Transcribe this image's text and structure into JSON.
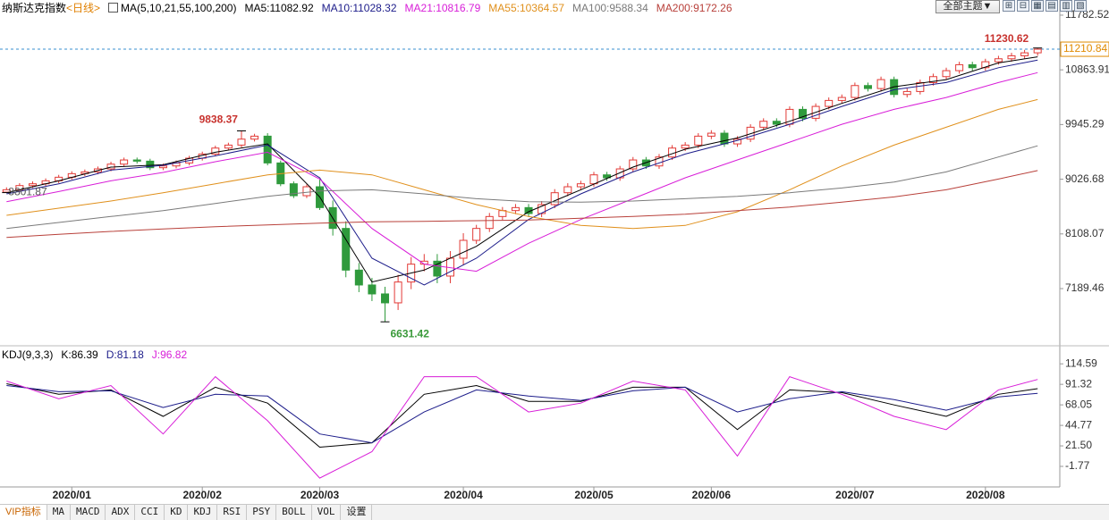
{
  "toolbar": {
    "theme_button": "全部主题▼"
  },
  "tabs": [
    "VIP指标",
    "MA",
    "MACD",
    "ADX",
    "CCI",
    "KD",
    "KDJ",
    "RSI",
    "PSY",
    "BOLL",
    "VOL",
    "设置"
  ],
  "chart_data": [
    {
      "type": "candlestick",
      "title": "纳斯达克指数",
      "subtitle": "<日线>",
      "indicator": "MA(5,10,21,55,100,200)",
      "up_color": "#e23a36",
      "down_color": "#2f9a3c",
      "open": [
        8810,
        8850,
        8920,
        8950,
        9000,
        9060,
        9120,
        9150,
        9200,
        9280,
        9350,
        9330,
        9220,
        9250,
        9300,
        9380,
        9450,
        9550,
        9600,
        9700,
        9750,
        9300,
        8950,
        8750,
        8900,
        8550,
        8200,
        7500,
        7250,
        7100,
        6950,
        7300,
        7600,
        7650,
        7400,
        7700,
        8000,
        8200,
        8400,
        8500,
        8550,
        8450,
        8600,
        8800,
        8900,
        8950,
        9100,
        9050,
        9200,
        9350,
        9250,
        9400,
        9550,
        9600,
        9750,
        9800,
        9620,
        9700,
        9900,
        10000,
        9950,
        10200,
        10050,
        10250,
        10350,
        10400,
        10600,
        10550,
        10700,
        10450,
        10500,
        10650,
        10750,
        10850,
        10950,
        10900,
        11000,
        11050,
        11100,
        11150
      ],
      "high": [
        8890,
        8960,
        8990,
        9040,
        9100,
        9160,
        9190,
        9240,
        9320,
        9390,
        9390,
        9370,
        9290,
        9340,
        9420,
        9490,
        9590,
        9640,
        9838.37,
        9790,
        9800,
        9340,
        8990,
        8940,
        9020,
        8670,
        8320,
        7620,
        7370,
        7220,
        7420,
        7720,
        7770,
        7770,
        7820,
        8120,
        8260,
        8460,
        8560,
        8610,
        8610,
        8660,
        8860,
        8960,
        9000,
        9150,
        9150,
        9250,
        9400,
        9400,
        9450,
        9600,
        9650,
        9800,
        9850,
        9850,
        9750,
        9950,
        10050,
        10050,
        10250,
        10250,
        10300,
        10400,
        10450,
        10650,
        10650,
        10750,
        10750,
        10550,
        10700,
        10800,
        10900,
        11000,
        11000,
        11050,
        11100,
        11150,
        11200,
        11230.62
      ],
      "low": [
        8801.87,
        8810,
        8880,
        8910,
        8960,
        9020,
        9080,
        9110,
        9160,
        9240,
        9290,
        9180,
        9180,
        9210,
        9260,
        9340,
        9410,
        9510,
        9560,
        9660,
        9260,
        8910,
        8710,
        8710,
        8510,
        8080,
        7380,
        7130,
        6980,
        6631.42,
        6830,
        7180,
        7480,
        7280,
        7280,
        7580,
        7940,
        8140,
        8340,
        8440,
        8390,
        8390,
        8540,
        8740,
        8850,
        8900,
        9000,
        9000,
        9150,
        9200,
        9200,
        9350,
        9500,
        9550,
        9700,
        9570,
        9570,
        9650,
        9850,
        9900,
        9900,
        10000,
        10000,
        10200,
        10300,
        10350,
        10500,
        10500,
        10400,
        10400,
        10450,
        10600,
        10700,
        10800,
        10850,
        10850,
        10950,
        11000,
        11050,
        11100
      ],
      "close": [
        8850,
        8920,
        8950,
        9000,
        9060,
        9120,
        9150,
        9200,
        9280,
        9350,
        9330,
        9220,
        9250,
        9300,
        9380,
        9450,
        9550,
        9600,
        9700,
        9750,
        9300,
        8950,
        8750,
        8900,
        8550,
        8200,
        7500,
        7250,
        7100,
        6950,
        7300,
        7600,
        7650,
        7400,
        7700,
        8000,
        8200,
        8400,
        8500,
        8550,
        8450,
        8600,
        8800,
        8900,
        8950,
        9100,
        9050,
        9200,
        9350,
        9250,
        9400,
        9550,
        9600,
        9750,
        9800,
        9620,
        9700,
        9900,
        10000,
        9950,
        10200,
        10050,
        10250,
        10350,
        10400,
        10600,
        10550,
        10700,
        10450,
        10500,
        10650,
        10750,
        10850,
        10950,
        10900,
        11000,
        11050,
        11100,
        11150,
        11210.84
      ],
      "xlim": [
        -0.5,
        80.7
      ],
      "ylim": [
        6259,
        12037
      ],
      "yticks": [
        11782.52,
        10863.91,
        9945.29,
        9026.68,
        8108.07,
        7189.46
      ],
      "series": [
        {
          "name": "MA5:",
          "color": "#000000",
          "x": [
            0,
            4,
            8,
            12,
            16,
            20,
            24,
            28,
            32,
            36,
            40,
            44,
            48,
            52,
            56,
            60,
            64,
            68,
            72,
            76,
            79
          ],
          "values": [
            8800,
            9000,
            9230,
            9270,
            9480,
            9620,
            8730,
            7300,
            7500,
            7900,
            8480,
            8850,
            9230,
            9530,
            9720,
            10000,
            10300,
            10580,
            10700,
            10980,
            11082.92
          ]
        },
        {
          "name": "MA10:",
          "color": "#1c1c8a",
          "x": [
            0,
            4,
            8,
            12,
            16,
            20,
            24,
            28,
            32,
            36,
            40,
            44,
            48,
            52,
            56,
            60,
            64,
            68,
            72,
            76,
            79
          ],
          "values": [
            8780,
            8950,
            9180,
            9260,
            9420,
            9600,
            9050,
            7700,
            7250,
            7700,
            8350,
            8780,
            9150,
            9450,
            9680,
            9950,
            10250,
            10530,
            10650,
            10900,
            11028.32
          ]
        },
        {
          "name": "MA21:",
          "color": "#d81ed8",
          "x": [
            0,
            4,
            8,
            12,
            16,
            20,
            24,
            28,
            32,
            36,
            40,
            44,
            48,
            52,
            56,
            60,
            64,
            68,
            72,
            76,
            79
          ],
          "values": [
            8650,
            8820,
            9000,
            9140,
            9320,
            9480,
            9030,
            8200,
            7600,
            7480,
            7950,
            8350,
            8700,
            9050,
            9350,
            9650,
            9950,
            10200,
            10400,
            10650,
            10816.79
          ]
        },
        {
          "name": "MA55:",
          "color": "#e0901c",
          "x": [
            0,
            4,
            8,
            12,
            16,
            20,
            24,
            28,
            32,
            36,
            40,
            44,
            48,
            52,
            56,
            60,
            64,
            68,
            72,
            76,
            79
          ],
          "values": [
            8420,
            8540,
            8660,
            8800,
            8950,
            9100,
            9180,
            9100,
            8850,
            8600,
            8400,
            8250,
            8200,
            8250,
            8480,
            8850,
            9250,
            9600,
            9900,
            10200,
            10364.57
          ]
        },
        {
          "name": "MA100:",
          "color": "#7a7a7a",
          "x": [
            0,
            4,
            8,
            12,
            16,
            20,
            24,
            28,
            32,
            36,
            40,
            44,
            48,
            52,
            56,
            60,
            64,
            68,
            72,
            76,
            79
          ],
          "values": [
            8200,
            8300,
            8400,
            8500,
            8620,
            8740,
            8830,
            8850,
            8780,
            8700,
            8650,
            8640,
            8660,
            8700,
            8740,
            8800,
            8880,
            8980,
            9150,
            9400,
            9588.34
          ]
        },
        {
          "name": "MA200:",
          "color": "#b8403a",
          "x": [
            0,
            4,
            8,
            12,
            16,
            20,
            24,
            28,
            32,
            36,
            40,
            44,
            48,
            52,
            56,
            60,
            64,
            68,
            72,
            76,
            79
          ],
          "values": [
            8050,
            8100,
            8150,
            8190,
            8230,
            8260,
            8290,
            8310,
            8320,
            8330,
            8340,
            8370,
            8400,
            8440,
            8500,
            8560,
            8640,
            8730,
            8850,
            9030,
            9172.26
          ]
        }
      ]
    },
    {
      "type": "line",
      "title": "KDJ(9,3,3)",
      "xlim": [
        -0.5,
        80.7
      ],
      "xticks": [
        {
          "value": 5,
          "label": "2020/01"
        },
        {
          "value": 15,
          "label": "2020/02"
        },
        {
          "value": 24,
          "label": "2020/03"
        },
        {
          "value": 35,
          "label": "2020/04"
        },
        {
          "value": 45,
          "label": "2020/05"
        },
        {
          "value": 54,
          "label": "2020/06"
        },
        {
          "value": 65,
          "label": "2020/07"
        },
        {
          "value": 75,
          "label": "2020/08"
        }
      ],
      "ylim": [
        -20,
        130
      ],
      "yticks": [
        114.59,
        91.32,
        68.05,
        44.77,
        {
          "value": 21.5,
          "label": "21.50"
        },
        -1.77
      ],
      "series": [
        {
          "name": "K:",
          "color": "#000000",
          "x": [
            0,
            4,
            8,
            12,
            16,
            20,
            24,
            28,
            32,
            36,
            40,
            44,
            48,
            52,
            56,
            60,
            64,
            68,
            72,
            76,
            79
          ],
          "values": [
            92,
            80,
            85,
            55,
            88,
            70,
            20,
            25,
            80,
            90,
            72,
            72,
            88,
            88,
            40,
            85,
            82,
            68,
            55,
            80,
            86.39
          ]
        },
        {
          "name": "D:",
          "color": "#1c1c8a",
          "x": [
            0,
            4,
            8,
            12,
            16,
            20,
            24,
            28,
            32,
            36,
            40,
            44,
            48,
            52,
            56,
            60,
            64,
            68,
            72,
            76,
            79
          ],
          "values": [
            90,
            83,
            84,
            65,
            80,
            78,
            35,
            25,
            60,
            85,
            78,
            73,
            84,
            88,
            60,
            75,
            83,
            74,
            62,
            77,
            81.18
          ]
        },
        {
          "name": "J:",
          "color": "#d81ed8",
          "x": [
            0,
            4,
            8,
            12,
            16,
            20,
            24,
            28,
            32,
            36,
            40,
            44,
            48,
            52,
            56,
            60,
            64,
            68,
            72,
            76,
            79
          ],
          "values": [
            95,
            75,
            90,
            35,
            100,
            50,
            -15,
            15,
            100,
            100,
            60,
            70,
            95,
            85,
            10,
            100,
            80,
            55,
            40,
            85,
            96.82
          ]
        }
      ]
    }
  ]
}
